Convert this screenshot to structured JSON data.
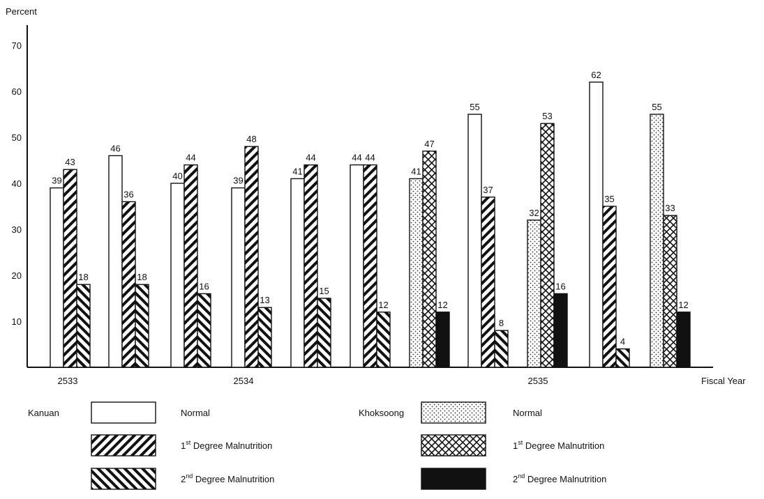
{
  "chart_data": {
    "type": "bar",
    "ylabel": "Percent",
    "xlabel": "Fiscal Year",
    "ylim": [
      0,
      75
    ],
    "yticks": [
      10,
      20,
      30,
      40,
      50,
      60,
      70
    ],
    "grid": false,
    "x_tick_labels": [
      "2533",
      "2534",
      "2535"
    ],
    "groups": [
      {
        "area": "Kanuan",
        "values": [
          39,
          43,
          18
        ]
      },
      {
        "area": "Kanuan",
        "values": [
          46,
          36,
          18
        ]
      },
      {
        "area": "Kanuan",
        "values": [
          40,
          44,
          16
        ]
      },
      {
        "area": "Kanuan",
        "values": [
          39,
          48,
          13
        ]
      },
      {
        "area": "Kanuan",
        "values": [
          41,
          44,
          15
        ]
      },
      {
        "area": "Kanuan",
        "values": [
          44,
          44,
          12
        ]
      },
      {
        "area": "Khoksoong",
        "values": [
          41,
          47,
          12
        ]
      },
      {
        "area": "Kanuan",
        "values": [
          55,
          37,
          8
        ]
      },
      {
        "area": "Khoksoong",
        "values": [
          32,
          53,
          16
        ]
      },
      {
        "area": "Kanuan",
        "values": [
          62,
          35,
          4
        ]
      },
      {
        "area": "Khoksoong",
        "values": [
          55,
          33,
          12
        ]
      }
    ],
    "legend": {
      "placement": "bottom",
      "areas": [
        {
          "name": "Kanuan",
          "items": [
            {
              "label": "Normal",
              "pattern": "plain"
            },
            {
              "label_pre": "1",
              "label_sup": "st",
              "label_post": " Degree Malnutrition",
              "pattern": "hatch-back"
            },
            {
              "label_pre": "2",
              "label_sup": "nd",
              "label_post": " Degree Malnutrition",
              "pattern": "hatch-fwd"
            }
          ]
        },
        {
          "name": "Khoksoong",
          "items": [
            {
              "label": "Normal",
              "pattern": "dots"
            },
            {
              "label_pre": "1",
              "label_sup": "st",
              "label_post": " Degree Malnutrition",
              "pattern": "crosshatch"
            },
            {
              "label_pre": "2",
              "label_sup": "nd",
              "label_post": " Degree Malnutrition",
              "pattern": "solid"
            }
          ]
        }
      ]
    }
  }
}
